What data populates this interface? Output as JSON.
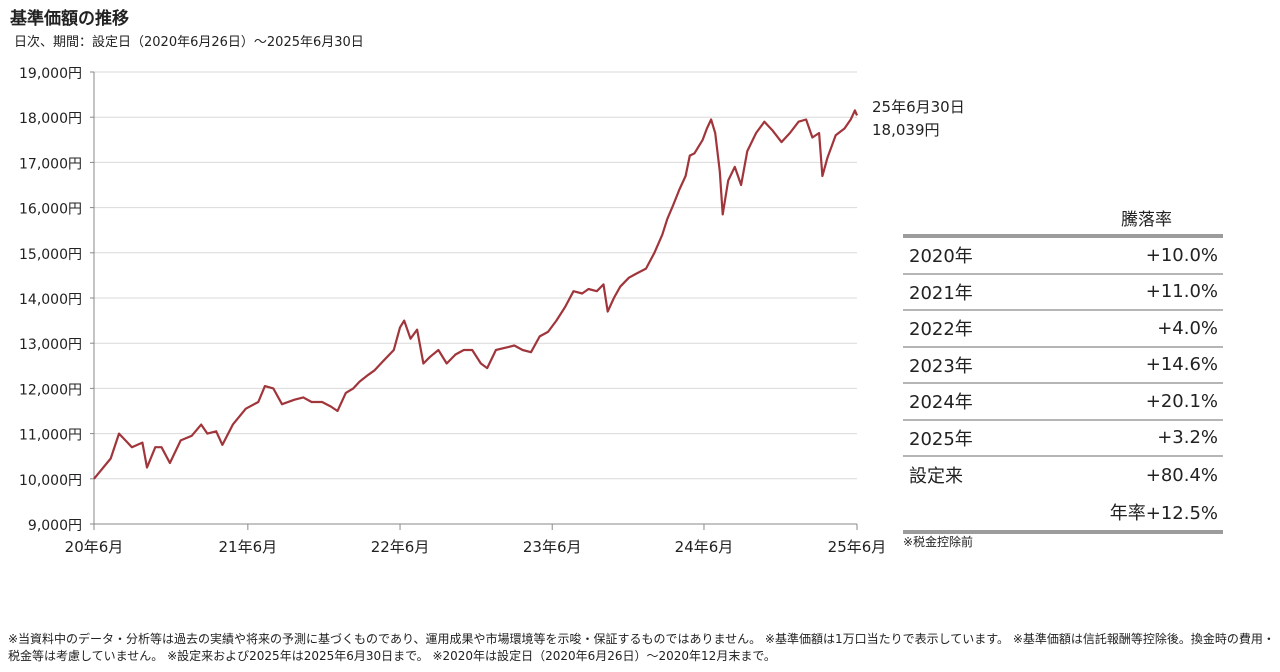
{
  "title": "基準価額の推移",
  "subtitle": "日次、期間：設定日（2020年6月26日）～2025年6月30日",
  "chart_data": {
    "type": "line",
    "title": "基準価額の推移",
    "ylim": [
      9000,
      19000
    ],
    "y_ticks": [
      9000,
      10000,
      11000,
      12000,
      13000,
      14000,
      15000,
      16000,
      17000,
      18000,
      19000
    ],
    "y_tick_labels": [
      "9,000円",
      "10,000円",
      "11,000円",
      "12,000円",
      "13,000円",
      "14,000円",
      "15,000円",
      "16,000円",
      "17,000円",
      "18,000円",
      "19,000円"
    ],
    "x_start": "2020-06-26",
    "x_end": "2025-06-30",
    "x_ticks": [
      "2020-06-26",
      "2021-06-30",
      "2022-06-30",
      "2023-06-30",
      "2024-06-28",
      "2025-06-30"
    ],
    "x_tick_labels": [
      "20年6月",
      "21年6月",
      "22年6月",
      "23年6月",
      "24年6月",
      "25年6月"
    ],
    "grid": true,
    "line_color": "#a0363b",
    "series": [
      {
        "points": [
          [
            "2020-06-26",
            10000
          ],
          [
            "2020-08-05",
            10450
          ],
          [
            "2020-08-25",
            11000
          ],
          [
            "2020-09-25",
            10700
          ],
          [
            "2020-10-20",
            10800
          ],
          [
            "2020-10-31",
            10250
          ],
          [
            "2020-11-20",
            10700
          ],
          [
            "2020-12-05",
            10700
          ],
          [
            "2020-12-25",
            10350
          ],
          [
            "2021-01-20",
            10850
          ],
          [
            "2021-02-15",
            10950
          ],
          [
            "2021-03-10",
            11200
          ],
          [
            "2021-03-25",
            11000
          ],
          [
            "2021-04-15",
            11050
          ],
          [
            "2021-04-30",
            10750
          ],
          [
            "2021-05-25",
            11200
          ],
          [
            "2021-06-25",
            11550
          ],
          [
            "2021-07-25",
            11700
          ],
          [
            "2021-08-10",
            12050
          ],
          [
            "2021-08-30",
            12000
          ],
          [
            "2021-09-20",
            11650
          ],
          [
            "2021-10-20",
            11750
          ],
          [
            "2021-11-10",
            11800
          ],
          [
            "2021-11-30",
            11700
          ],
          [
            "2021-12-25",
            11700
          ],
          [
            "2022-01-15",
            11600
          ],
          [
            "2022-01-31",
            11500
          ],
          [
            "2022-02-20",
            11900
          ],
          [
            "2022-03-10",
            12000
          ],
          [
            "2022-03-25",
            12150
          ],
          [
            "2022-04-15",
            12300
          ],
          [
            "2022-04-30",
            12400
          ],
          [
            "2022-05-15",
            12550
          ],
          [
            "2022-06-15",
            12850
          ],
          [
            "2022-06-30",
            13350
          ],
          [
            "2022-07-10",
            13500
          ],
          [
            "2022-07-25",
            13100
          ],
          [
            "2022-08-10",
            13300
          ],
          [
            "2022-08-25",
            12550
          ],
          [
            "2022-09-10",
            12700
          ],
          [
            "2022-09-30",
            12850
          ],
          [
            "2022-10-20",
            12550
          ],
          [
            "2022-11-10",
            12750
          ],
          [
            "2022-11-30",
            12850
          ],
          [
            "2022-12-20",
            12850
          ],
          [
            "2023-01-10",
            12550
          ],
          [
            "2023-01-25",
            12450
          ],
          [
            "2023-02-15",
            12850
          ],
          [
            "2023-03-10",
            12900
          ],
          [
            "2023-03-31",
            12950
          ],
          [
            "2023-04-20",
            12850
          ],
          [
            "2023-05-10",
            12800
          ],
          [
            "2023-05-31",
            13150
          ],
          [
            "2023-06-20",
            13250
          ],
          [
            "2023-07-10",
            13500
          ],
          [
            "2023-07-31",
            13800
          ],
          [
            "2023-08-20",
            14150
          ],
          [
            "2023-09-10",
            14100
          ],
          [
            "2023-09-25",
            14200
          ],
          [
            "2023-10-15",
            14150
          ],
          [
            "2023-10-31",
            14300
          ],
          [
            "2023-11-10",
            13700
          ],
          [
            "2023-11-25",
            14000
          ],
          [
            "2023-12-10",
            14250
          ],
          [
            "2023-12-31",
            14450
          ],
          [
            "2024-01-20",
            14550
          ],
          [
            "2024-02-10",
            14650
          ],
          [
            "2024-03-01",
            15000
          ],
          [
            "2024-03-20",
            15400
          ],
          [
            "2024-04-01",
            15750
          ],
          [
            "2024-04-15",
            16050
          ],
          [
            "2024-04-30",
            16400
          ],
          [
            "2024-05-15",
            16700
          ],
          [
            "2024-05-25",
            17150
          ],
          [
            "2024-06-05",
            17200
          ],
          [
            "2024-06-25",
            17500
          ],
          [
            "2024-07-05",
            17750
          ],
          [
            "2024-07-15",
            17950
          ],
          [
            "2024-07-25",
            17650
          ],
          [
            "2024-08-05",
            16800
          ],
          [
            "2024-08-12",
            15850
          ],
          [
            "2024-08-25",
            16600
          ],
          [
            "2024-09-10",
            16900
          ],
          [
            "2024-09-25",
            16500
          ],
          [
            "2024-10-10",
            17250
          ],
          [
            "2024-10-31",
            17650
          ],
          [
            "2024-11-20",
            17900
          ],
          [
            "2024-12-10",
            17700
          ],
          [
            "2024-12-31",
            17450
          ],
          [
            "2025-01-20",
            17650
          ],
          [
            "2025-02-10",
            17900
          ],
          [
            "2025-02-28",
            17950
          ],
          [
            "2025-03-15",
            17550
          ],
          [
            "2025-03-31",
            17650
          ],
          [
            "2025-04-08",
            16700
          ],
          [
            "2025-04-20",
            17100
          ],
          [
            "2025-05-10",
            17600
          ],
          [
            "2025-05-31",
            17750
          ],
          [
            "2025-06-15",
            17950
          ],
          [
            "2025-06-25",
            18150
          ],
          [
            "2025-06-30",
            18039
          ]
        ]
      }
    ],
    "annotation": {
      "date": "25年6月30日",
      "value": "18,039円"
    },
    "table": {
      "header": "騰落率",
      "rows": [
        {
          "label": "2020年",
          "value": "+10.0%"
        },
        {
          "label": "2021年",
          "value": "+11.0%"
        },
        {
          "label": "2022年",
          "value": "+4.0%"
        },
        {
          "label": "2023年",
          "value": "+14.6%"
        },
        {
          "label": "2024年",
          "value": "+20.1%"
        },
        {
          "label": "2025年",
          "value": "+3.2%"
        },
        {
          "label": "設定来",
          "value": "+80.4%"
        }
      ],
      "annual": "年率+12.5%",
      "note": "※税金控除前"
    }
  },
  "footnote": "※当資料中のデータ・分析等は過去の実績や将来の予測に基づくものであり、運用成果や市場環境等を示唆・保証するものではありません。 ※基準価額は1万口当たりで表示しています。 ※基準価額は信託報酬等控除後。換金時の費用・税金等は考慮していません。 ※設定来および2025年は2025年6月30日まで。 ※2020年は設定日（2020年6月26日）～2020年12月末まで。"
}
